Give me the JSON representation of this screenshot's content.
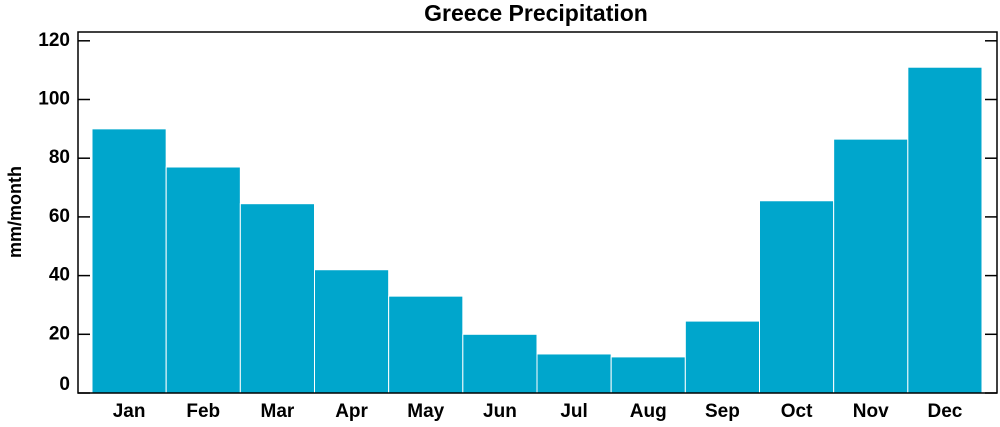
{
  "chart_data": {
    "type": "bar",
    "title": "Greece Precipitation",
    "ylabel": "mm/month",
    "categories": [
      "Jan",
      "Feb",
      "Mar",
      "Apr",
      "May",
      "Jun",
      "Jul",
      "Aug",
      "Sep",
      "Oct",
      "Nov",
      "Dec"
    ],
    "values": [
      90,
      77,
      64.5,
      42,
      33,
      20,
      13.3,
      12.3,
      24.5,
      65.5,
      86.5,
      111
    ],
    "color": "#00a6cc",
    "ylim": [
      0,
      123
    ],
    "yticks": [
      0,
      20,
      40,
      60,
      80,
      100,
      120
    ]
  }
}
